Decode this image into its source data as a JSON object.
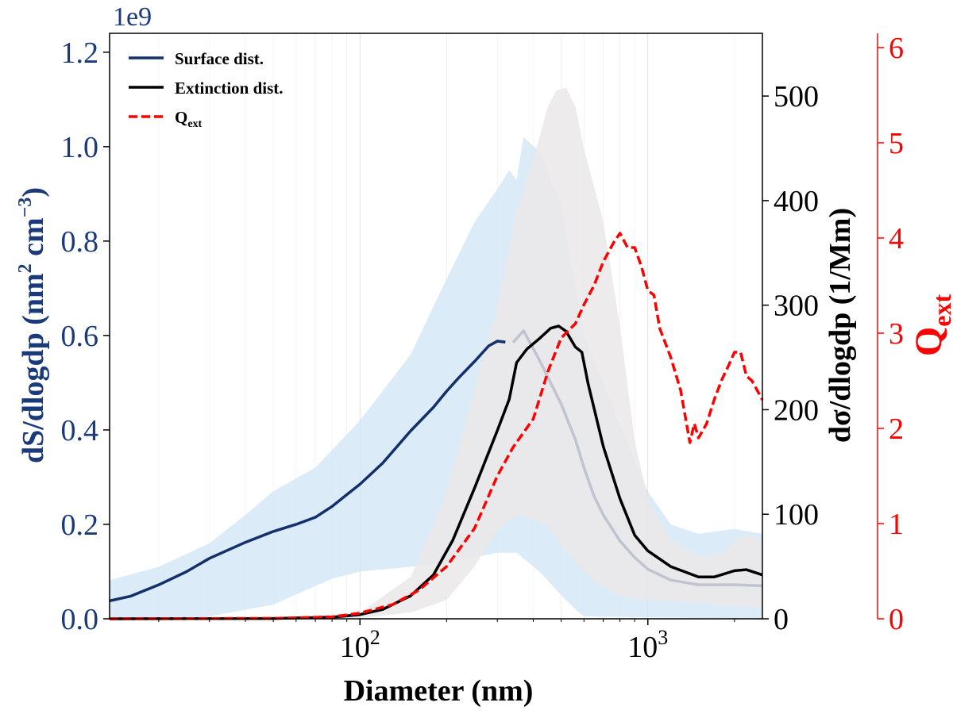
{
  "chart_data": {
    "type": "line",
    "xlabel": "Diameter (nm)",
    "x_scale": "log",
    "xlim": [
      13.5,
      2500
    ],
    "x_ticks": [
      {
        "value": 100,
        "base": "10",
        "exp": "2"
      },
      {
        "value": 1000,
        "base": "10",
        "exp": "3"
      }
    ],
    "grid": "vertical minor and major lines, light",
    "axes": {
      "left": {
        "label_main": "dS/dlogdp (nm",
        "label_sup1": "2",
        "label_mid": " cm",
        "label_sup2": "−3",
        "label_end": ")",
        "offset_text": "1e9",
        "ylim": [
          0,
          1.24
        ],
        "ticks": [
          0.0,
          0.2,
          0.4,
          0.6,
          0.8,
          1.0,
          1.2
        ],
        "tick_labels": [
          "0.0",
          "0.2",
          "0.4",
          "0.6",
          "0.8",
          "1.0",
          "1.2"
        ],
        "color": "#1a3a7a"
      },
      "right1": {
        "label": "dσ/dlogdp (1/Mm)",
        "ylim": [
          0,
          560
        ],
        "ticks": [
          0,
          100,
          200,
          300,
          400,
          500
        ],
        "tick_labels": [
          "0",
          "100",
          "200",
          "300",
          "400",
          "500"
        ],
        "color": "#000000"
      },
      "right2": {
        "label_main": "Q",
        "label_sub": "ext",
        "ylim": [
          0,
          6.15
        ],
        "ticks": [
          0,
          1,
          2,
          3,
          4,
          5,
          6
        ],
        "tick_labels": [
          "0",
          "1",
          "2",
          "3",
          "4",
          "5",
          "6"
        ],
        "color": "#ff0000"
      }
    },
    "legend": {
      "placement": "top-left",
      "entries": [
        {
          "label": "Surface dist.",
          "style": "solid",
          "color": "#14306b"
        },
        {
          "label": "Extinction dist.",
          "style": "solid",
          "color": "#000000"
        },
        {
          "label_main": "Q",
          "label_sub": "ext",
          "style": "dashed",
          "color": "#ff0000"
        }
      ]
    },
    "series": [
      {
        "name": "Surface dist.",
        "axis": "left",
        "color": "#14306b",
        "points": [
          [
            13.5,
            0.038
          ],
          [
            16,
            0.048
          ],
          [
            20,
            0.072
          ],
          [
            25,
            0.1
          ],
          [
            30,
            0.128
          ],
          [
            40,
            0.162
          ],
          [
            50,
            0.185
          ],
          [
            60,
            0.2
          ],
          [
            70,
            0.215
          ],
          [
            80,
            0.238
          ],
          [
            90,
            0.263
          ],
          [
            100,
            0.285
          ],
          [
            120,
            0.33
          ],
          [
            150,
            0.398
          ],
          [
            180,
            0.448
          ],
          [
            200,
            0.482
          ],
          [
            220,
            0.51
          ],
          [
            250,
            0.545
          ],
          [
            280,
            0.578
          ],
          [
            300,
            0.588
          ],
          [
            320,
            0.586
          ],
          [
            340,
            0.585
          ],
          [
            370,
            0.61
          ],
          [
            420,
            0.548
          ],
          [
            500,
            0.455
          ],
          [
            560,
            0.38
          ],
          [
            600,
            0.32
          ],
          [
            650,
            0.26
          ],
          [
            700,
            0.22
          ],
          [
            800,
            0.165
          ],
          [
            900,
            0.13
          ],
          [
            1000,
            0.105
          ],
          [
            1200,
            0.082
          ],
          [
            1500,
            0.072
          ],
          [
            2000,
            0.072
          ],
          [
            2500,
            0.07
          ]
        ],
        "highlight_upto": 330
      },
      {
        "name": "Extinction dist.",
        "axis": "right1",
        "color": "#000000",
        "points": [
          [
            13.5,
            0
          ],
          [
            50,
            0.3
          ],
          [
            80,
            1.5
          ],
          [
            100,
            4
          ],
          [
            120,
            9
          ],
          [
            150,
            22
          ],
          [
            180,
            42
          ],
          [
            210,
            75
          ],
          [
            250,
            125
          ],
          [
            300,
            180
          ],
          [
            330,
            210
          ],
          [
            350,
            245
          ],
          [
            380,
            258
          ],
          [
            420,
            268
          ],
          [
            460,
            278
          ],
          [
            490,
            280
          ],
          [
            520,
            275
          ],
          [
            560,
            260
          ],
          [
            590,
            255
          ],
          [
            620,
            225
          ],
          [
            700,
            165
          ],
          [
            800,
            115
          ],
          [
            900,
            80
          ],
          [
            1000,
            65
          ],
          [
            1200,
            50
          ],
          [
            1500,
            40
          ],
          [
            1700,
            40
          ],
          [
            2000,
            46
          ],
          [
            2200,
            47
          ],
          [
            2500,
            42
          ]
        ]
      },
      {
        "name": "Qext",
        "axis": "right2",
        "color": "#ff0000",
        "dashed": true,
        "points": [
          [
            13.5,
            0
          ],
          [
            50,
            0.005
          ],
          [
            80,
            0.02
          ],
          [
            100,
            0.06
          ],
          [
            130,
            0.15
          ],
          [
            160,
            0.3
          ],
          [
            200,
            0.55
          ],
          [
            250,
            0.95
          ],
          [
            300,
            1.5
          ],
          [
            340,
            1.8
          ],
          [
            400,
            2.1
          ],
          [
            450,
            2.6
          ],
          [
            500,
            2.95
          ],
          [
            560,
            3.1
          ],
          [
            600,
            3.3
          ],
          [
            650,
            3.5
          ],
          [
            700,
            3.75
          ],
          [
            760,
            3.95
          ],
          [
            800,
            4.05
          ],
          [
            850,
            3.9
          ],
          [
            900,
            3.9
          ],
          [
            950,
            3.7
          ],
          [
            1000,
            3.45
          ],
          [
            1050,
            3.4
          ],
          [
            1100,
            3.05
          ],
          [
            1200,
            2.75
          ],
          [
            1300,
            2.4
          ],
          [
            1400,
            1.85
          ],
          [
            1450,
            2.05
          ],
          [
            1500,
            1.9
          ],
          [
            1600,
            2.05
          ],
          [
            1700,
            2.3
          ],
          [
            1800,
            2.5
          ],
          [
            1900,
            2.65
          ],
          [
            2000,
            2.8
          ],
          [
            2100,
            2.8
          ],
          [
            2200,
            2.55
          ],
          [
            2300,
            2.5
          ],
          [
            2500,
            2.3
          ]
        ]
      }
    ],
    "bands": [
      {
        "axis": "left",
        "color": "#cfe6f5",
        "opacity": 0.75,
        "upper": [
          [
            13.5,
            0.082
          ],
          [
            20,
            0.11
          ],
          [
            30,
            0.16
          ],
          [
            40,
            0.22
          ],
          [
            50,
            0.27
          ],
          [
            70,
            0.32
          ],
          [
            100,
            0.42
          ],
          [
            150,
            0.56
          ],
          [
            200,
            0.72
          ],
          [
            250,
            0.84
          ],
          [
            300,
            0.91
          ],
          [
            330,
            0.95
          ],
          [
            350,
            0.93
          ],
          [
            370,
            1.02
          ],
          [
            420,
            0.99
          ],
          [
            500,
            0.88
          ],
          [
            600,
            0.6
          ],
          [
            700,
            0.5
          ],
          [
            800,
            0.41
          ],
          [
            1000,
            0.27
          ],
          [
            1200,
            0.2
          ],
          [
            1500,
            0.18
          ],
          [
            2000,
            0.19
          ],
          [
            2500,
            0.18
          ]
        ],
        "lower": [
          [
            13.5,
            0
          ],
          [
            20,
            0
          ],
          [
            30,
            0.005
          ],
          [
            50,
            0.03
          ],
          [
            80,
            0.085
          ],
          [
            100,
            0.1
          ],
          [
            150,
            0.11
          ],
          [
            200,
            0.12
          ],
          [
            250,
            0.13
          ],
          [
            300,
            0.14
          ],
          [
            350,
            0.14
          ],
          [
            420,
            0.1
          ],
          [
            500,
            0.05
          ],
          [
            560,
            0.02
          ],
          [
            600,
            0.005
          ],
          [
            2500,
            0
          ]
        ]
      },
      {
        "axis": "right1",
        "color": "#ebe8e8",
        "opacity": 0.88,
        "upper": [
          [
            13.5,
            0
          ],
          [
            50,
            1
          ],
          [
            100,
            6
          ],
          [
            150,
            40
          ],
          [
            200,
            120
          ],
          [
            250,
            220
          ],
          [
            300,
            300
          ],
          [
            350,
            390
          ],
          [
            400,
            440
          ],
          [
            450,
            490
          ],
          [
            480,
            505
          ],
          [
            520,
            508
          ],
          [
            560,
            490
          ],
          [
            600,
            450
          ],
          [
            700,
            380
          ],
          [
            800,
            280
          ],
          [
            900,
            170
          ],
          [
            1000,
            115
          ],
          [
            1200,
            75
          ],
          [
            1500,
            60
          ],
          [
            1800,
            62
          ],
          [
            2000,
            75
          ],
          [
            2200,
            80
          ],
          [
            2500,
            75
          ]
        ],
        "lower": [
          [
            13.5,
            0
          ],
          [
            100,
            1
          ],
          [
            150,
            6
          ],
          [
            200,
            18
          ],
          [
            250,
            50
          ],
          [
            300,
            85
          ],
          [
            350,
            100
          ],
          [
            400,
            95
          ],
          [
            450,
            90
          ],
          [
            500,
            70
          ],
          [
            600,
            45
          ],
          [
            700,
            30
          ],
          [
            800,
            22
          ],
          [
            1000,
            18
          ],
          [
            1500,
            15
          ],
          [
            2500,
            10
          ]
        ]
      }
    ]
  }
}
